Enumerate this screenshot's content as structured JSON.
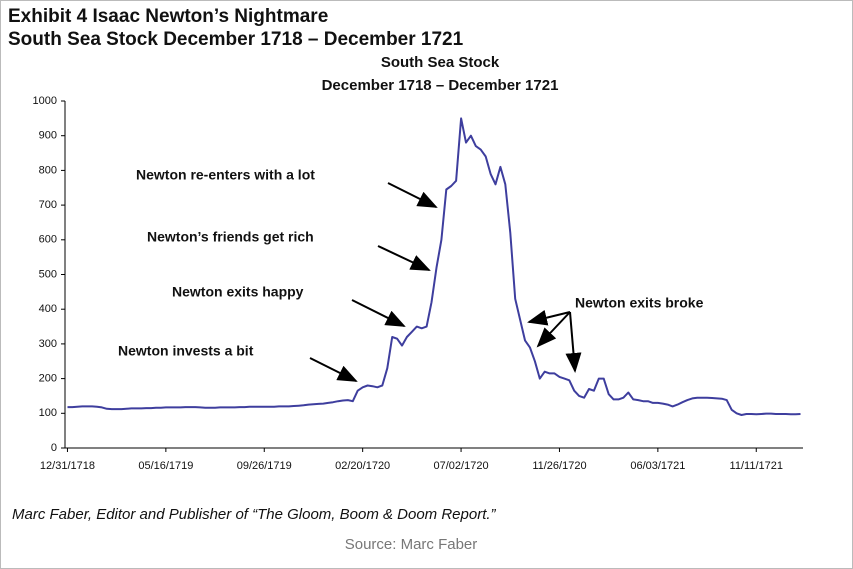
{
  "header": {
    "title": [
      "Exhibit 4  Isaac Newton’s Nightmare",
      "South Sea Stock December 1718 – December 1721"
    ]
  },
  "chart_data": {
    "type": "line",
    "title": "South Sea Stock",
    "subtitle": "December 1718 – December 1721",
    "color": "#3e3e9e",
    "categories": [
      "12/31/1718",
      null,
      null,
      null,
      null,
      null,
      null,
      null,
      null,
      null,
      null,
      null,
      null,
      null,
      null,
      null,
      null,
      null,
      null,
      null,
      "05/16/1719",
      null,
      null,
      null,
      null,
      null,
      null,
      null,
      null,
      null,
      null,
      null,
      null,
      null,
      null,
      null,
      null,
      null,
      null,
      null,
      "09/26/1719",
      null,
      null,
      null,
      null,
      null,
      null,
      null,
      null,
      null,
      null,
      null,
      null,
      null,
      null,
      null,
      null,
      null,
      null,
      null,
      "02/20/1720",
      null,
      null,
      null,
      null,
      null,
      null,
      null,
      null,
      null,
      null,
      null,
      null,
      null,
      null,
      null,
      null,
      null,
      null,
      null,
      "07/02/1720",
      null,
      null,
      null,
      null,
      null,
      null,
      null,
      null,
      null,
      null,
      null,
      null,
      null,
      null,
      null,
      null,
      null,
      null,
      null,
      "11/26/1720",
      null,
      null,
      null,
      null,
      null,
      null,
      null,
      null,
      null,
      null,
      null,
      null,
      null,
      null,
      null,
      null,
      null,
      null,
      null,
      "06/03/1721",
      null,
      null,
      null,
      null,
      null,
      null,
      null,
      null,
      null,
      null,
      null,
      null,
      null,
      null,
      null,
      null,
      null,
      null,
      null,
      "11/11/1721",
      null,
      null,
      null,
      null,
      null,
      null,
      null,
      null,
      null
    ],
    "values": [
      118,
      118,
      119,
      120,
      120,
      120,
      119,
      117,
      113,
      112,
      112,
      112,
      113,
      114,
      114,
      114,
      115,
      115,
      116,
      116,
      117,
      117,
      117,
      117,
      118,
      118,
      118,
      117,
      116,
      116,
      116,
      117,
      117,
      117,
      117,
      118,
      118,
      119,
      119,
      119,
      119,
      119,
      119,
      120,
      120,
      120,
      121,
      122,
      123,
      125,
      126,
      127,
      128,
      130,
      132,
      135,
      137,
      138,
      135,
      165,
      175,
      180,
      178,
      175,
      180,
      230,
      320,
      315,
      295,
      320,
      335,
      350,
      345,
      350,
      420,
      520,
      600,
      745,
      755,
      770,
      950,
      880,
      900,
      870,
      860,
      840,
      790,
      760,
      810,
      760,
      620,
      430,
      370,
      310,
      290,
      250,
      200,
      220,
      215,
      215,
      205,
      200,
      195,
      165,
      150,
      145,
      170,
      165,
      200,
      200,
      155,
      140,
      140,
      145,
      160,
      140,
      138,
      135,
      135,
      130,
      130,
      128,
      125,
      120,
      125,
      132,
      138,
      143,
      145,
      145,
      145,
      144,
      143,
      142,
      138,
      110,
      100,
      95,
      98,
      98,
      97,
      98,
      99,
      99,
      98,
      98,
      98,
      97,
      97,
      98
    ],
    "ylim": [
      0,
      1000
    ],
    "yticks": [
      0,
      100,
      200,
      300,
      400,
      500,
      600,
      700,
      800,
      900,
      1000
    ],
    "annotations": [
      "Newton invests a bit",
      "Newton exits happy",
      "Newton’s friends get rich",
      "Newton re-enters with a lot",
      "Newton exits broke"
    ]
  },
  "caption": "Marc Faber, Editor and Publisher of “The Gloom, Boom & Doom Report.”",
  "source": "Source: Marc Faber"
}
